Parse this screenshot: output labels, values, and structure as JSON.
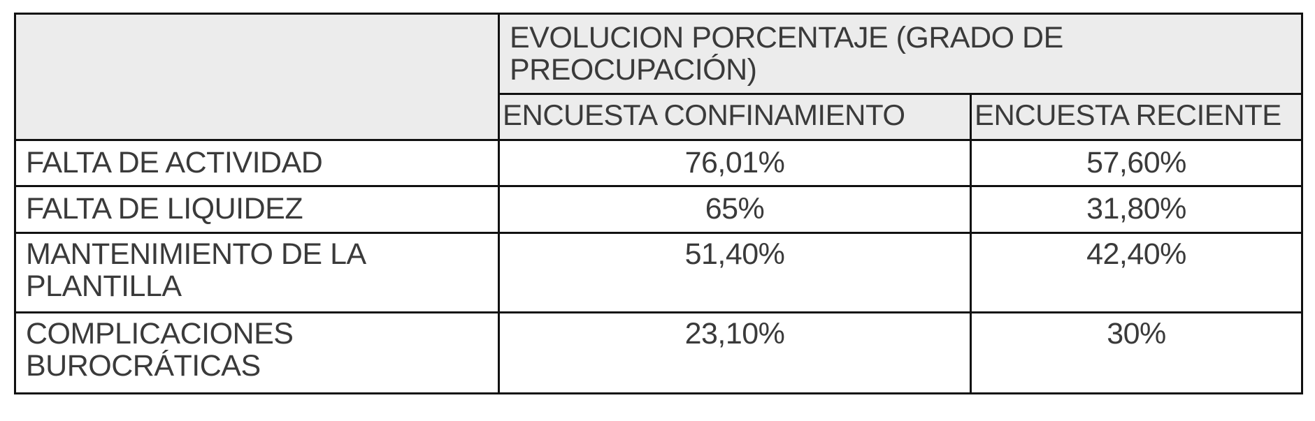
{
  "header": {
    "group_title": "EVOLUCION PORCENTAJE (GRADO DE PREOCUPACIÓN)",
    "columns": [
      "ENCUESTA CONFINAMIENTO",
      "ENCUESTA RECIENTE"
    ]
  },
  "rows": [
    {
      "label": "FALTA DE ACTIVIDAD",
      "values": [
        "76,01%",
        "57,60%"
      ]
    },
    {
      "label": "FALTA DE LIQUIDEZ",
      "values": [
        "65%",
        "31,80%"
      ]
    },
    {
      "label": "MANTENIMIENTO DE LA PLANTILLA",
      "values": [
        "51,40%",
        "42,40%"
      ]
    },
    {
      "label": "COMPLICACIONES BUROCRÁTICAS",
      "values": [
        "23,10%",
        "30%"
      ]
    }
  ],
  "colors": {
    "header_bg": "#ececec",
    "border": "#111111",
    "text": "#3a3a3a"
  }
}
